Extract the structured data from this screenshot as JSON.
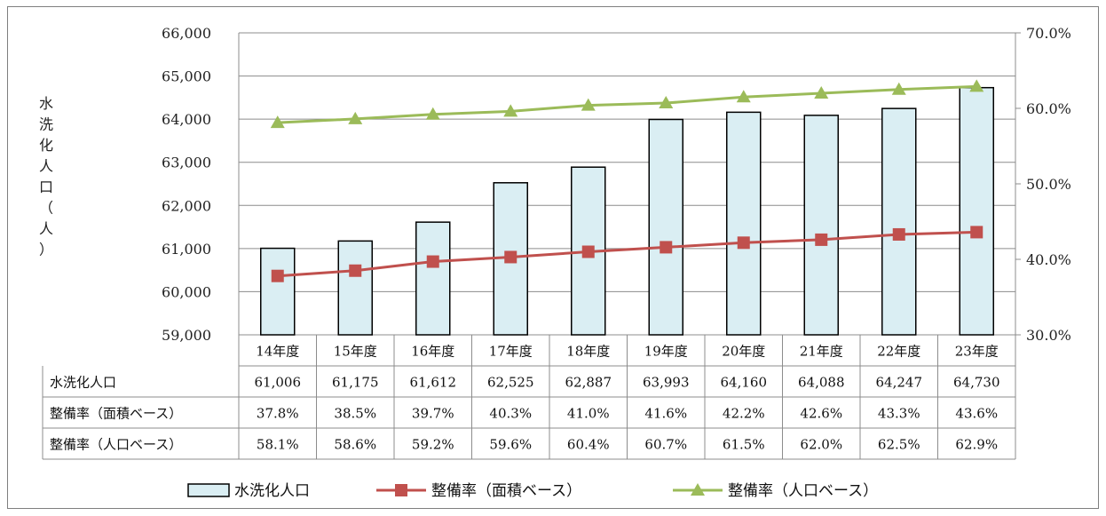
{
  "chart_data": {
    "type": "bar",
    "categories": [
      "14年度",
      "15年度",
      "16年度",
      "17年度",
      "18年度",
      "19年度",
      "20年度",
      "21年度",
      "22年度",
      "23年度"
    ],
    "ylabel": "水洗化人口（人）",
    "ylabel_chars": [
      "水",
      "洗",
      "化",
      "人",
      "口",
      "（",
      "人",
      "）"
    ],
    "ylim": [
      59000,
      66000
    ],
    "y2lim": [
      0.3,
      0.7
    ],
    "y_ticks": [
      "59,000",
      "60,000",
      "61,000",
      "62,000",
      "63,000",
      "64,000",
      "65,000",
      "66,000"
    ],
    "y2_ticks": [
      "30.0%",
      "40.0%",
      "50.0%",
      "60.0%",
      "70.0%"
    ],
    "grid": true,
    "legend_position": "bottom",
    "series": [
      {
        "name": "水洗化人口",
        "type": "bar",
        "axis": "left",
        "color": "#daeef3",
        "values": [
          61006,
          61175,
          61612,
          62525,
          62887,
          63993,
          64160,
          64088,
          64247,
          64730
        ],
        "labels": [
          "61,006",
          "61,175",
          "61,612",
          "62,525",
          "62,887",
          "63,993",
          "64,160",
          "64,088",
          "64,247",
          "64,730"
        ]
      },
      {
        "name": "整備率（面積ベース）",
        "type": "line",
        "axis": "right",
        "color": "#c0504d",
        "marker": "square",
        "values": [
          0.378,
          0.385,
          0.397,
          0.403,
          0.41,
          0.416,
          0.422,
          0.426,
          0.433,
          0.436
        ],
        "labels": [
          "37.8%",
          "38.5%",
          "39.7%",
          "40.3%",
          "41.0%",
          "41.6%",
          "42.2%",
          "42.6%",
          "43.3%",
          "43.6%"
        ]
      },
      {
        "name": "整備率（人口ベース）",
        "type": "line",
        "axis": "right",
        "color": "#9bbb59",
        "marker": "triangle",
        "values": [
          0.581,
          0.586,
          0.592,
          0.596,
          0.604,
          0.607,
          0.615,
          0.62,
          0.625,
          0.629
        ],
        "labels": [
          "58.1%",
          "58.6%",
          "59.2%",
          "59.6%",
          "60.4%",
          "60.7%",
          "61.5%",
          "62.0%",
          "62.5%",
          "62.9%"
        ]
      }
    ]
  }
}
